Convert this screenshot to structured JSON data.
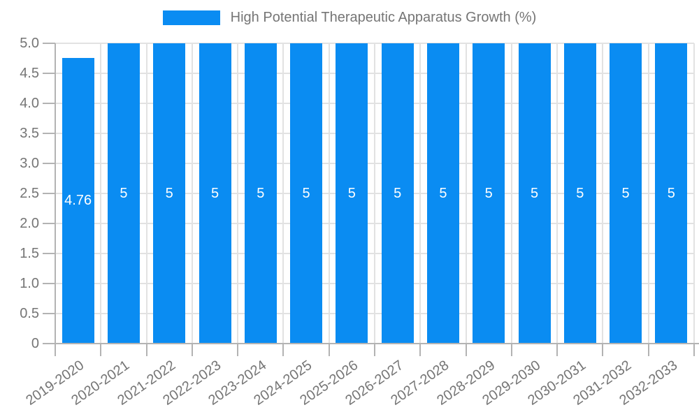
{
  "legend": {
    "label": "High Potential Therapeutic Apparatus Growth (%)"
  },
  "chart_data": {
    "type": "bar",
    "title": "High Potential Therapeutic Apparatus Growth (%)",
    "categories": [
      "2019-2020",
      "2020-2021",
      "2021-2022",
      "2022-2023",
      "2023-2024",
      "2024-2025",
      "2025-2026",
      "2026-2027",
      "2027-2028",
      "2028-2029",
      "2029-2030",
      "2030-2031",
      "2031-2032",
      "2032-2033"
    ],
    "values": [
      4.76,
      5,
      5,
      5,
      5,
      5,
      5,
      5,
      5,
      5,
      5,
      5,
      5,
      5
    ],
    "bar_value_labels": [
      "4.76",
      "5",
      "5",
      "5",
      "5",
      "5",
      "5",
      "5",
      "5",
      "5",
      "5",
      "5",
      "5",
      "5"
    ],
    "xlabel": "",
    "ylabel": "",
    "ylim": [
      0,
      5
    ],
    "ytick_values": [
      0,
      0.5,
      1,
      1.5,
      2,
      2.5,
      3,
      3.5,
      4,
      4.5,
      5
    ],
    "ytick_labels": [
      "0",
      "0.5",
      "1.0",
      "1.5",
      "2.0",
      "2.5",
      "3.0",
      "3.5",
      "4.0",
      "4.5",
      "5.0"
    ],
    "grid": true,
    "legend_position": "top",
    "x_label_rotation_deg": -35,
    "colors": {
      "bar": "#0a8cf2",
      "bar_label": "#ffffff",
      "grid": "#e2e2e2",
      "axis_line": "#b3b3b3",
      "tick_text": "#757575",
      "title_text": "#757575",
      "background": "#ffffff"
    }
  }
}
